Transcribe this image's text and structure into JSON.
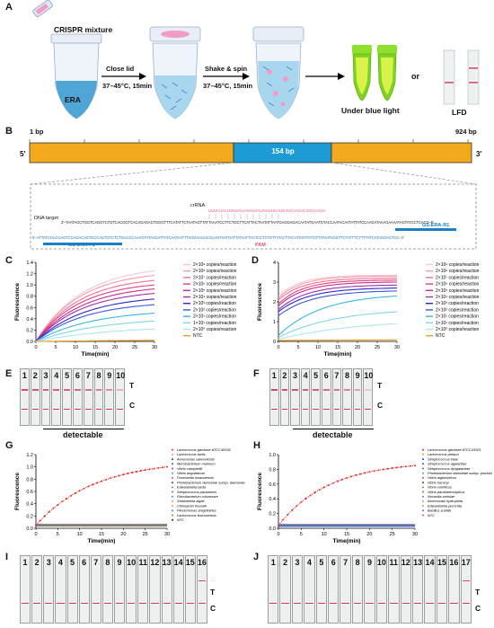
{
  "panels": {
    "A": {
      "label": "A",
      "crispr_mixture": "CRISPR mixture",
      "tube1": "ERA",
      "step1_line1": "Close lid",
      "step1_line2": "37–45°C, 15min",
      "step2_line1": "Shake & spin",
      "step2_line2": "37–45°C, 15min",
      "or": "or",
      "under_blue_light": "Under  blue light",
      "lfd": "LFD"
    },
    "B": {
      "label": "B",
      "start": "1 bp",
      "end": "924 bp",
      "five": "5'",
      "three": "3'",
      "segment": "154 bp",
      "crrna": "crRNA",
      "dna_target": "DNA target",
      "pam": "PAM",
      "primer_r1": "GS-ERA-R1",
      "primer_f1": "GS-ERA-F1",
      "crrna_seq": "UUUCUACUGUUGUAGAUGAUGGUUGAUGAUCAAGACGGCUAGAAUGAUAUGA",
      "top_strand": "3'–TAATAGCTGGTCAGGTCTGTCACGGTCACAGAGACTGGGTTTCATATTCTAATAGTTATTAAATCCTTCTGCTTCATTACTAATATTAATGAGGAGACAATATGAATGTACCAATACAATATTATCCAAGATAAAGAAAATAGTATCCTCACG–5'",
      "bottom_strand": "5'–ATTATCGACCAGTCCAGACAGTGCCAGTGTCTCTGACCCAAAGTATAAGATTATCAATAATTTAGGAAGACGAAGTAATGATTATAATTACTCCTCTGTTATACTTACATGGTTATGTTATAATAGGTTCTATTTCTTTTATCATAGGAGTGC–3'"
    },
    "C": {
      "label": "C",
      "ylabel": "Fluorescence",
      "xlabel": "Time(min)",
      "legend": [
        "2×10⁹ copies/reaction",
        "2×10⁸ copies/reaction",
        "2×10⁷ copies/reaction",
        "2×10⁶ copies/reaction",
        "2×10⁵ copies/reaction",
        "2×10⁴ copies/reaction",
        "2×10³ copies/reaction",
        "2×10² copies/reaction",
        "2×10¹ copies/reaction",
        "1×10¹ copies/reaction",
        "2×10⁰ copies/reaction",
        "NTC"
      ]
    },
    "D": {
      "label": "D",
      "ylabel": "Fluorescence",
      "xlabel": "Time(min)",
      "legend": [
        "2×10⁹ copies/reaction",
        "2×10⁸ copies/reaction",
        "2×10⁷ copies/reaction",
        "2×10⁶ copies/reaction",
        "2×10⁵ copies/reaction",
        "2×10⁴ copies/reaction",
        "2×10³ copies/reaction",
        "2×10² copies/reaction",
        "2×10¹ copies/reaction",
        "1×10¹ copies/reaction",
        "2×10⁰ copies/reaction",
        "NTC"
      ]
    },
    "E": {
      "label": "E",
      "T": "T",
      "C": "C",
      "detectable": "detectable",
      "lanes": [
        "1",
        "2",
        "3",
        "4",
        "5",
        "6",
        "7",
        "8",
        "9",
        "10"
      ],
      "test_line_lanes": [
        1,
        2,
        3,
        4,
        5,
        6,
        7,
        8,
        9,
        10
      ],
      "test_line_intensity": [
        0.9,
        0.85,
        0.8,
        0.8,
        0.75,
        0.75,
        0.7,
        0.65,
        0.55,
        0.35
      ]
    },
    "F": {
      "label": "F",
      "T": "T",
      "C": "C",
      "detectable": "detectable",
      "lanes": [
        "1",
        "2",
        "3",
        "4",
        "5",
        "6",
        "7",
        "8",
        "9",
        "10"
      ],
      "test_line_lanes": [
        1,
        2,
        3,
        4,
        5,
        6,
        7,
        8,
        9,
        10
      ],
      "test_line_intensity": [
        0.95,
        0.9,
        0.85,
        0.8,
        0.8,
        0.75,
        0.7,
        0.6,
        0.45,
        0.2
      ]
    },
    "G": {
      "label": "G",
      "ylabel": "Fluorescence",
      "xlabel": "Time(min)",
      "legend": [
        "Lactococcus garvieae ATCC49156",
        "Lactococcus lactis",
        "Aeromonas salmonicida",
        "Mycobacterium marinum",
        "Vibrio campbellii",
        "Vibrio anguillarum",
        "Francisella noatunensis",
        "Photobacterium damselae subsp. damselae",
        "Edwardsiella tarda",
        "Streptococcus parauberis",
        "Flavobacterium columnare",
        "Shewanella algae",
        "Citrobacter freundii",
        "Plesiomonas shigelloides",
        "Lactococcus formosensis",
        "NTC"
      ]
    },
    "H": {
      "label": "H",
      "ylabel": "Fluorescence",
      "xlabel": "Time(min)",
      "legend": [
        "Lactococcus garvieae ATCC43921",
        "Lactococcus petauri",
        "Streptococcus iniae",
        "Streptococcus agalactiae",
        "Streptococcus dysgalactiae",
        "Photobacterium damselae subsp. piscicida",
        "Vibrio alginolyticus",
        "Vibrio harveyi",
        "Vibrio vulnificus",
        "Vibrio parahaemolyticus",
        "Nocardia seriolae",
        "Aeromonas hydrophila",
        "Edwardsiella piscicida",
        "Bacillus subtilis",
        "NTC"
      ]
    },
    "I": {
      "label": "I",
      "T": "T",
      "C": "C",
      "lanes": [
        "1",
        "2",
        "3",
        "4",
        "5",
        "6",
        "7",
        "8",
        "9",
        "10",
        "11",
        "12",
        "13",
        "14",
        "15",
        "16"
      ],
      "test_line_lanes": [
        16
      ]
    },
    "J": {
      "label": "J",
      "T": "T",
      "C": "C",
      "lanes": [
        "1",
        "2",
        "3",
        "4",
        "5",
        "6",
        "7",
        "8",
        "9",
        "10",
        "11",
        "12",
        "13",
        "14",
        "15",
        "16",
        "17"
      ],
      "test_line_lanes": [
        17
      ]
    }
  },
  "chart_data": [
    {
      "panel": "C",
      "type": "line",
      "xlabel": "Time(min)",
      "ylabel": "Fluorescence",
      "xlim": [
        0,
        30
      ],
      "ylim": [
        0,
        1.4
      ],
      "xticks": [
        0,
        5,
        10,
        15,
        20,
        25,
        30
      ],
      "yticks": [
        0.0,
        0.2,
        0.4,
        0.6,
        0.8,
        1.0,
        1.2,
        1.4
      ],
      "series": [
        {
          "name": "2×10⁹ copies/reaction",
          "color": "#f7c6cf",
          "final": 1.25,
          "k": 0.085
        },
        {
          "name": "2×10⁸ copies/reaction",
          "color": "#f59ab0",
          "final": 1.17,
          "k": 0.09
        },
        {
          "name": "2×10⁷ copies/reaction",
          "color": "#f2708f",
          "final": 1.08,
          "k": 0.09
        },
        {
          "name": "2×10⁶ copies/reaction",
          "color": "#e0407a",
          "final": 1.0,
          "k": 0.09
        },
        {
          "name": "2×10⁵ copies/reaction",
          "color": "#c42c8f",
          "final": 0.93,
          "k": 0.085
        },
        {
          "name": "2×10⁴ copies/reaction",
          "color": "#a32cb5",
          "final": 0.85,
          "k": 0.085
        },
        {
          "name": "2×10³ copies/reaction",
          "color": "#2a28c8",
          "final": 0.75,
          "k": 0.08
        },
        {
          "name": "2×10² copies/reaction",
          "color": "#3a58d8",
          "final": 0.65,
          "k": 0.08
        },
        {
          "name": "2×10¹ copies/reaction",
          "color": "#37b6e6",
          "final": 0.5,
          "k": 0.07
        },
        {
          "name": "1×10¹ copies/reaction",
          "color": "#7fd6e8",
          "final": 0.36,
          "k": 0.06
        },
        {
          "name": "2×10⁰ copies/reaction",
          "color": "#aee6ee",
          "final": 0.22,
          "k": 0.05
        },
        {
          "name": "NTC",
          "color": "#f0a020",
          "final": 0.02,
          "k": 0.02
        }
      ]
    },
    {
      "panel": "D",
      "type": "line",
      "xlabel": "Time(min)",
      "ylabel": "Fluorescence",
      "xlim": [
        0,
        30
      ],
      "ylim": [
        0,
        4
      ],
      "xticks": [
        0,
        5,
        10,
        15,
        20,
        25,
        30
      ],
      "yticks": [
        0,
        1,
        2,
        3,
        4
      ],
      "series": [
        {
          "name": "2×10⁹ copies/reaction",
          "color": "#f7c6cf",
          "start": 2.3,
          "final": 3.35,
          "k": 0.18
        },
        {
          "name": "2×10⁸ copies/reaction",
          "color": "#f59ab0",
          "start": 2.2,
          "final": 3.3,
          "k": 0.17
        },
        {
          "name": "2×10⁷ copies/reaction",
          "color": "#f2708f",
          "start": 2.1,
          "final": 3.2,
          "k": 0.16
        },
        {
          "name": "2×10⁶ copies/reaction",
          "color": "#e0407a",
          "start": 1.9,
          "final": 3.1,
          "k": 0.16
        },
        {
          "name": "2×10⁵ copies/reaction",
          "color": "#c42c8f",
          "start": 1.8,
          "final": 3.0,
          "k": 0.15
        },
        {
          "name": "2×10⁴ copies/reaction",
          "color": "#a32cb5",
          "start": 1.6,
          "final": 2.85,
          "k": 0.14
        },
        {
          "name": "2×10³ copies/reaction",
          "color": "#2a28c8",
          "start": 1.5,
          "final": 2.7,
          "k": 0.13
        },
        {
          "name": "2×10² copies/reaction",
          "color": "#3a58d8",
          "start": 1.3,
          "final": 2.55,
          "k": 0.12
        },
        {
          "name": "2×10¹ copies/reaction",
          "color": "#37b6e6",
          "start": 0.3,
          "final": 2.3,
          "k": 0.09
        },
        {
          "name": "1×10¹ copies/reaction",
          "color": "#7fd6e8",
          "start": 0.2,
          "final": 1.5,
          "k": 0.07
        },
        {
          "name": "2×10⁰ copies/reaction",
          "color": "#aee6ee",
          "start": 0.1,
          "final": 0.9,
          "k": 0.05
        },
        {
          "name": "NTC",
          "color": "#f0a020",
          "start": 0.05,
          "final": 0.08,
          "k": 0.02
        }
      ]
    },
    {
      "panel": "G",
      "type": "line",
      "xlabel": "Time(min)",
      "ylabel": "Fluorescence",
      "xlim": [
        0,
        30
      ],
      "ylim": [
        0,
        1.2
      ],
      "xticks": [
        0,
        5,
        10,
        15,
        20,
        25,
        30
      ],
      "yticks": [
        0.0,
        0.2,
        0.4,
        0.6,
        0.8,
        1.0,
        1.2
      ],
      "positive": {
        "name": "Lactococcus garvieae ATCC49156",
        "color": "#e8281e",
        "final": 1.0,
        "k": 0.075
      },
      "negative_level": 0.05
    },
    {
      "panel": "H",
      "type": "line",
      "xlabel": "Time(min)",
      "ylabel": "Fluorescence",
      "xlim": [
        0,
        30
      ],
      "ylim": [
        0,
        1.0
      ],
      "xticks": [
        0,
        5,
        10,
        15,
        20,
        25,
        30
      ],
      "yticks": [
        0.0,
        0.2,
        0.4,
        0.6,
        0.8,
        1.0
      ],
      "positive": {
        "name": "Lactococcus garvieae ATCC43921",
        "color": "#e8281e",
        "final": 0.85,
        "k": 0.09
      },
      "negative_level": 0.04
    }
  ]
}
